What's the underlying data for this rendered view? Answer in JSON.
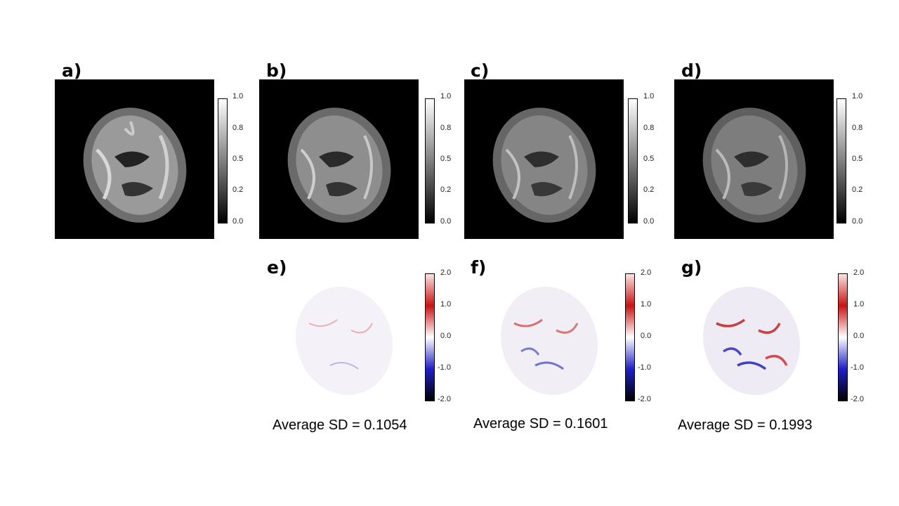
{
  "panels": {
    "a": "a)",
    "b": "b)",
    "c": "c)",
    "d": "d)",
    "e": "e)",
    "f": "f)",
    "g": "g)"
  },
  "gray_ticks": [
    "1.0",
    "0.8",
    "0.5",
    "0.2",
    "0.0"
  ],
  "diff_ticks": [
    "2.0",
    "1.0",
    "0.0",
    "-1.0",
    "-2.0"
  ],
  "captions": {
    "e": "Average SD = 0.1054",
    "f": "Average SD = 0.1601",
    "g": "Average SD = 0.1993"
  },
  "colors": {
    "background": "#000000",
    "positive": "#c91414",
    "negative": "#2020c8"
  }
}
